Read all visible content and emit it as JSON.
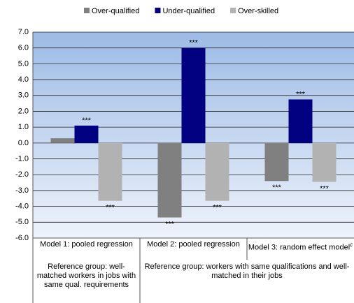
{
  "chart_data": {
    "type": "bar",
    "categories": [
      "Model 1: pooled regression",
      "Model 2: pooled regression",
      "Model 3: random effect model"
    ],
    "category_superscripts": [
      null,
      null,
      "c"
    ],
    "reference_groups": [
      {
        "span": [
          0,
          0
        ],
        "text": "Reference group: well-matched workers in jobs with same qual. requirements"
      },
      {
        "span": [
          1,
          2
        ],
        "text": "Reference group: workers with same qualifications and well-matched in their jobs"
      }
    ],
    "series": [
      {
        "name": "Over-qualified",
        "color": "#808080",
        "values": [
          0.3,
          -4.7,
          -2.4
        ],
        "significance": [
          null,
          "***",
          "***"
        ]
      },
      {
        "name": "Under-qualified",
        "color": "#000080",
        "values": [
          1.1,
          6.0,
          2.75
        ],
        "significance": [
          "***",
          "***",
          "***"
        ]
      },
      {
        "name": "Over-skilled",
        "color": "#b2b2b2",
        "values": [
          -3.65,
          -3.65,
          -2.45
        ],
        "significance": [
          "***",
          "***",
          "***"
        ]
      }
    ],
    "ylim": [
      -6,
      7
    ],
    "yticks": [
      {
        "value": -6,
        "label": "-6.0"
      },
      {
        "value": -5,
        "label": "-5.0"
      },
      {
        "value": -4,
        "label": "-4.0"
      },
      {
        "value": -3,
        "label": "-3.0"
      },
      {
        "value": -2,
        "label": "-2.0"
      },
      {
        "value": -1,
        "label": "-1.0"
      },
      {
        "value": 0,
        "label": "0.0"
      },
      {
        "value": 1,
        "label": "1.0"
      },
      {
        "value": 2,
        "label": "2.0"
      },
      {
        "value": 3,
        "label": "3.0"
      },
      {
        "value": 4,
        "label": "4.0"
      },
      {
        "value": 5,
        "label": "5.0"
      },
      {
        "value": 6,
        "label": "6.0"
      },
      {
        "value": 7,
        "label": "7.0"
      }
    ],
    "grid": true,
    "legend": "top"
  }
}
